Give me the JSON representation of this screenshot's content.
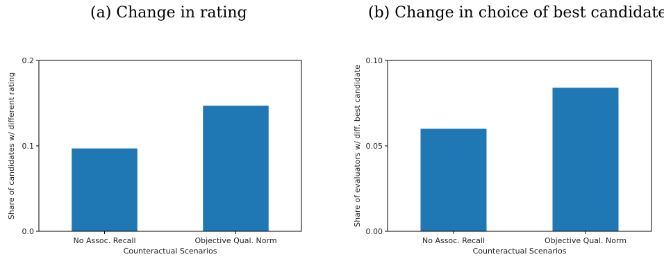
{
  "chart_data": [
    {
      "type": "bar",
      "title": "(a) Change in rating",
      "xlabel": "Counteractual Scenarios",
      "ylabel": "Share of candidates w/ different rating",
      "categories": [
        "No Assoc. Recall",
        "Objective Qual. Norm"
      ],
      "values": [
        0.097,
        0.147
      ],
      "ylim": [
        0,
        0.2
      ],
      "yticks": [
        0.0,
        0.1,
        0.2
      ],
      "ytick_labels": [
        "0.0",
        "0.1",
        "0.2"
      ],
      "bar_color": "#1f77b4",
      "grid": false,
      "legend": "none"
    },
    {
      "type": "bar",
      "title": "(b) Change in choice of best candidate",
      "xlabel": "Counteractual Scenarios",
      "ylabel": "Share of evaluators w/ diff. best candidate",
      "categories": [
        "No Assoc. Recall",
        "Objective Qual. Norm"
      ],
      "values": [
        0.06,
        0.084
      ],
      "ylim": [
        0,
        0.1
      ],
      "yticks": [
        0.0,
        0.05,
        0.1
      ],
      "ytick_labels": [
        "0.00",
        "0.05",
        "0.10"
      ],
      "bar_color": "#1f77b4",
      "grid": false,
      "legend": "none"
    }
  ]
}
